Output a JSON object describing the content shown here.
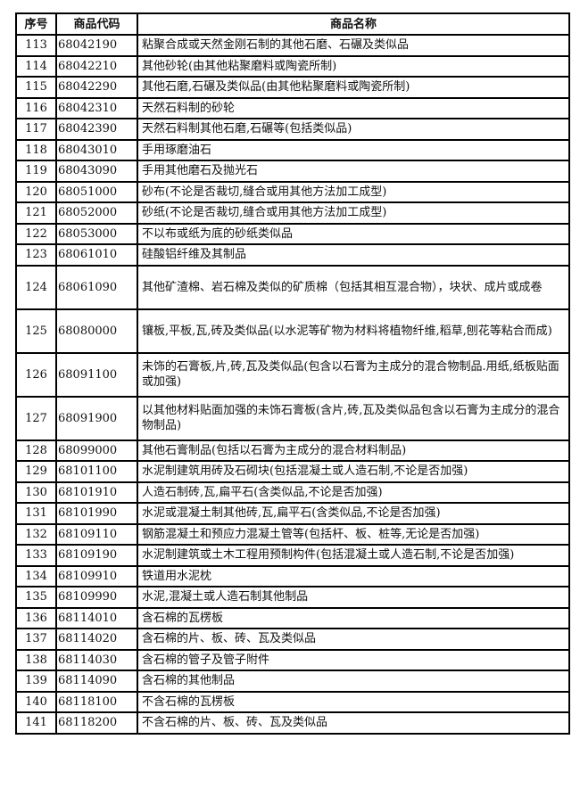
{
  "headers": {
    "no": "序号",
    "code": "商品代码",
    "name": "商品名称"
  },
  "rows": [
    {
      "no": "113",
      "code": "68042190",
      "name": "粘聚合成或天然金刚石制的其他石磨、石碾及类似品"
    },
    {
      "no": "114",
      "code": "68042210",
      "name": "其他砂轮(由其他粘聚磨料或陶瓷所制)"
    },
    {
      "no": "115",
      "code": "68042290",
      "name": "其他石磨,石碾及类似品(由其他粘聚磨料或陶瓷所制)"
    },
    {
      "no": "116",
      "code": "68042310",
      "name": "天然石料制的砂轮"
    },
    {
      "no": "117",
      "code": "68042390",
      "name": "天然石料制其他石磨,石碾等(包括类似品)"
    },
    {
      "no": "118",
      "code": "68043010",
      "name": "手用琢磨油石"
    },
    {
      "no": "119",
      "code": "68043090",
      "name": "手用其他磨石及抛光石"
    },
    {
      "no": "120",
      "code": "68051000",
      "name": "砂布(不论是否裁切,缝合或用其他方法加工成型)"
    },
    {
      "no": "121",
      "code": "68052000",
      "name": "砂纸(不论是否裁切,缝合或用其他方法加工成型)"
    },
    {
      "no": "122",
      "code": "68053000",
      "name": "不以布或纸为底的砂纸类似品"
    },
    {
      "no": "123",
      "code": "68061010",
      "name": "硅酸铝纤维及其制品"
    },
    {
      "no": "124",
      "code": "68061090",
      "name": "其他矿渣棉、岩石棉及类似的矿质棉（包括其相互混合物），块状、成片或成卷"
    },
    {
      "no": "125",
      "code": "68080000",
      "name": "镶板,平板,瓦,砖及类似品(以水泥等矿物为材料将植物纤维,稻草,刨花等粘合而成)"
    },
    {
      "no": "126",
      "code": "68091100",
      "name": "未饰的石膏板,片,砖,瓦及类似品(包含以石膏为主成分的混合物制品.用纸,纸板贴面或加强)"
    },
    {
      "no": "127",
      "code": "68091900",
      "name": "以其他材料贴面加强的未饰石膏板(含片,砖,瓦及类似品包含以石膏为主成分的混合物制品)"
    },
    {
      "no": "128",
      "code": "68099000",
      "name": "其他石膏制品(包括以石膏为主成分的混合材料制品)"
    },
    {
      "no": "129",
      "code": "68101100",
      "name": "水泥制建筑用砖及石砌块(包括混凝土或人造石制,不论是否加强)"
    },
    {
      "no": "130",
      "code": "68101910",
      "name": "人造石制砖,瓦,扁平石(含类似品,不论是否加强)"
    },
    {
      "no": "131",
      "code": "68101990",
      "name": "水泥或混凝土制其他砖,瓦,扁平石(含类似品,不论是否加强)"
    },
    {
      "no": "132",
      "code": "68109110",
      "name": "钢筋混凝土和预应力混凝土管等(包括杆、板、桩等,无论是否加强)"
    },
    {
      "no": "133",
      "code": "68109190",
      "name": "水泥制建筑或土木工程用预制构件(包括混凝土或人造石制,不论是否加强)"
    },
    {
      "no": "134",
      "code": "68109910",
      "name": "铁道用水泥枕"
    },
    {
      "no": "135",
      "code": "68109990",
      "name": "水泥,混凝土或人造石制其他制品"
    },
    {
      "no": "136",
      "code": "68114010",
      "name": "含石棉的瓦楞板"
    },
    {
      "no": "137",
      "code": "68114020",
      "name": "含石棉的片、板、砖、瓦及类似品"
    },
    {
      "no": "138",
      "code": "68114030",
      "name": "含石棉的管子及管子附件"
    },
    {
      "no": "139",
      "code": "68114090",
      "name": "含石棉的其他制品"
    },
    {
      "no": "140",
      "code": "68118100",
      "name": "不含石棉的瓦楞板"
    },
    {
      "no": "141",
      "code": "68118200",
      "name": "不含石棉的片、板、砖、瓦及类似品"
    }
  ]
}
